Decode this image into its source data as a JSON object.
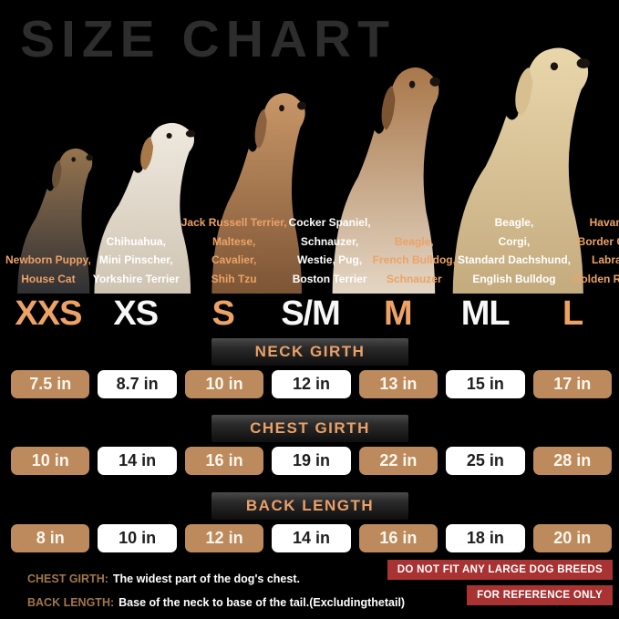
{
  "title": "SIZE CHART",
  "colors": {
    "accent_orange": "#eda266",
    "pill_tan": "#bc8a5c",
    "pill_white": "#ffffff",
    "badge_red": "#a93232",
    "note_term_tan": "#a0764c",
    "title_gray": "#2d2d2e",
    "header_text_orange": "#e9a069"
  },
  "size_columns": [
    {
      "size": "XXS",
      "breeds": [
        "Newborn Puppy,",
        "House Cat"
      ]
    },
    {
      "size": "XS",
      "breeds": [
        "Chihuahua,",
        "Mini Pinscher,",
        "Yorkshire Terrier"
      ]
    },
    {
      "size": "S",
      "breeds": [
        "Jack Russell Terrier,",
        "Maltese,",
        "Cavalier,",
        "Shih Tzu"
      ]
    },
    {
      "size": "S/M",
      "breeds": [
        "Cocker Spaniel,",
        "Schnauzer,",
        "Westie, Pug,",
        "Boston Terrier"
      ]
    },
    {
      "size": "M",
      "breeds": [
        "Beagle,",
        "French Bulldog,",
        "Schnauzer"
      ]
    },
    {
      "size": "ML",
      "breeds": [
        "Beagle,",
        "Corgi,",
        "Standard Dachshund,",
        "English Bulldog"
      ]
    },
    {
      "size": "L",
      "breeds": [
        "Havanese,",
        "Border Collies,",
        "Labrador,",
        "Golden Retriever"
      ]
    }
  ],
  "measurements": [
    {
      "label": "NECK GIRTH",
      "values": [
        "7.5 in",
        "8.7 in",
        "10 in",
        "12 in",
        "13 in",
        "15 in",
        "17 in"
      ]
    },
    {
      "label": "CHEST GIRTH",
      "values": [
        "10 in",
        "14 in",
        "16 in",
        "19 in",
        "22 in",
        "25 in",
        "28 in"
      ]
    },
    {
      "label": "BACK LENGTH",
      "values": [
        "8 in",
        "10 in",
        "12 in",
        "14 in",
        "16 in",
        "18 in",
        "20 in"
      ]
    }
  ],
  "notes": [
    {
      "term": "CHEST GIRTH:",
      "definition": "The widest part of the dog's chest."
    },
    {
      "term": "BACK LENGTH:",
      "definition": "Base of the neck to base of the tail.(Excludingthetail)"
    }
  ],
  "warnings": [
    "DO NOT FIT ANY LARGE DOG BREEDS",
    "FOR REFERENCE ONLY"
  ],
  "dog_images": [
    {
      "name": "yorkshire-terrier-image"
    },
    {
      "name": "jack-russell-terrier-image"
    },
    {
      "name": "french-bulldog-image"
    },
    {
      "name": "beagle-image"
    },
    {
      "name": "labrador-image"
    }
  ],
  "chart_data": {
    "type": "table",
    "title": "SIZE CHART",
    "columns": [
      "XXS",
      "XS",
      "S",
      "S/M",
      "M",
      "ML",
      "L"
    ],
    "rows": [
      {
        "label": "NECK GIRTH",
        "values_in": [
          7.5,
          8.7,
          10,
          12,
          13,
          15,
          17
        ]
      },
      {
        "label": "CHEST GIRTH",
        "values_in": [
          10,
          14,
          16,
          19,
          22,
          25,
          28
        ]
      },
      {
        "label": "BACK LENGTH",
        "values_in": [
          8,
          10,
          12,
          14,
          16,
          18,
          20
        ]
      }
    ],
    "units": "inches",
    "notes": [
      "CHEST GIRTH: The widest part of the dog's chest.",
      "BACK LENGTH: Base of the neck to base of the tail.(Excludingthetail)",
      "DO NOT FIT ANY LARGE DOG BREEDS",
      "FOR REFERENCE ONLY"
    ]
  }
}
